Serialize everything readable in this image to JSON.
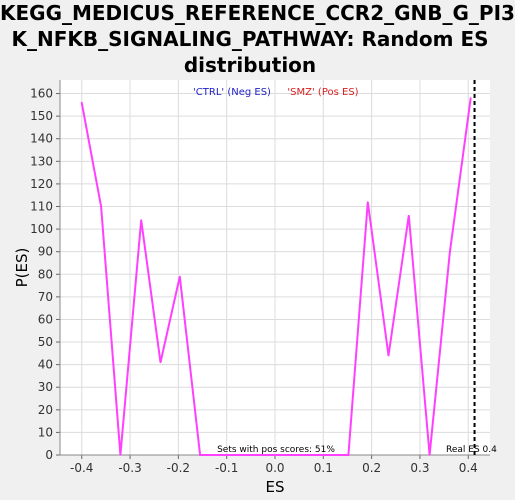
{
  "chart_data": {
    "type": "line",
    "title_lines": [
      "KEGG_MEDICUS_REFERENCE_CCR2_GNB_G_PI3",
      "K_NFKB_SIGNALING_PATHWAY: Random ES",
      "distribution"
    ],
    "xlabel": "ES",
    "ylabel": "P(ES)",
    "xlim": [
      -0.445,
      0.445
    ],
    "ylim": [
      0,
      166
    ],
    "x_ticks": [
      "-0.4",
      "-0.3",
      "-0.2",
      "-0.1",
      "0.0",
      "0.1",
      "0.2",
      "0.3",
      "0.4"
    ],
    "x_tick_values": [
      -0.4,
      -0.3,
      -0.2,
      -0.1,
      0.0,
      0.1,
      0.2,
      0.3,
      0.4
    ],
    "y_ticks": [
      "0",
      "10",
      "20",
      "30",
      "40",
      "50",
      "60",
      "70",
      "80",
      "90",
      "100",
      "110",
      "120",
      "130",
      "140",
      "150",
      "160"
    ],
    "y_tick_values": [
      0,
      10,
      20,
      30,
      40,
      50,
      60,
      70,
      80,
      90,
      100,
      110,
      120,
      130,
      140,
      150,
      160
    ],
    "series": [
      {
        "name": "Random ES",
        "color": "#ff40ff",
        "x": [
          -0.4,
          -0.36,
          -0.32,
          -0.277,
          -0.237,
          -0.197,
          -0.155,
          -0.1,
          0.0,
          0.1,
          0.152,
          0.192,
          0.235,
          0.277,
          0.32,
          0.362,
          0.405
        ],
        "y": [
          156,
          110,
          0,
          104,
          41,
          79,
          0,
          0,
          0,
          0,
          0,
          112,
          44,
          106,
          0,
          90,
          158
        ]
      }
    ],
    "legend": [
      {
        "label": "'CTRL' (Neg ES)",
        "color": "#2020c8"
      },
      {
        "label": "'SMZ' (Pos ES)",
        "color": "#d82020"
      }
    ],
    "legend_position": "top-center",
    "real_es": {
      "value": 0.413,
      "label": "Real ES 0.4"
    },
    "annotation": "Sets with pos scores: 51%",
    "colors": {
      "background": "#f0f0f0",
      "plot_background": "#ffffff",
      "line": "#ff40ff",
      "real_es_line": "#000000"
    }
  }
}
